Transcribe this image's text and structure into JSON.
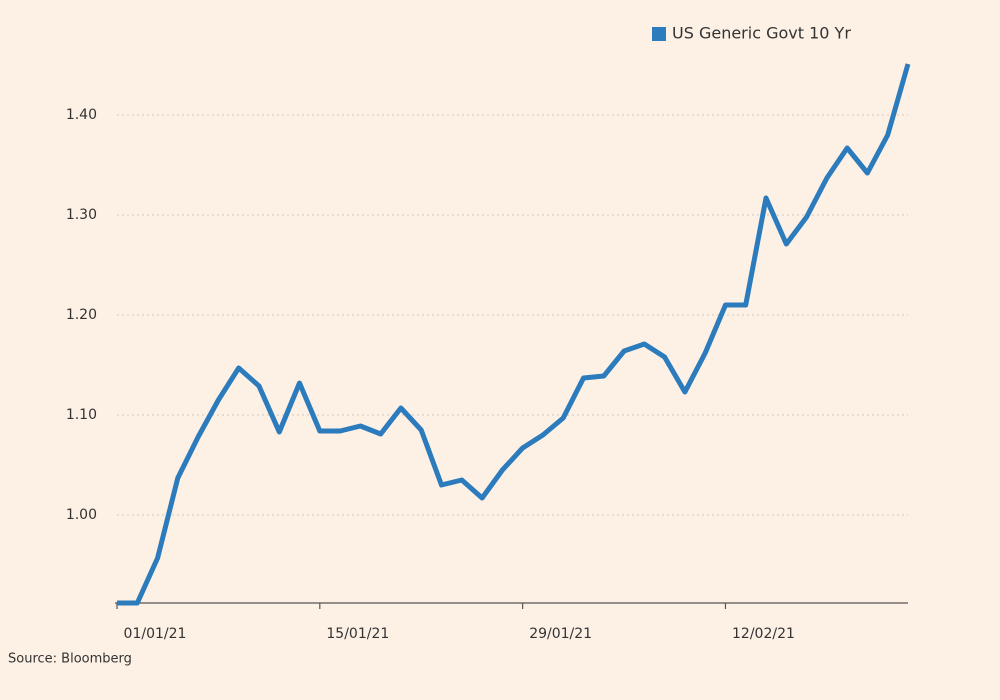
{
  "chart_data": {
    "type": "line",
    "categories": [
      "01/01/21",
      null,
      null,
      null,
      null,
      null,
      null,
      null,
      null,
      null,
      "15/01/21",
      null,
      null,
      null,
      null,
      null,
      null,
      null,
      null,
      null,
      "29/01/21",
      null,
      null,
      null,
      null,
      null,
      null,
      null,
      null,
      null,
      "12/02/21",
      null,
      null,
      null,
      null,
      null,
      null,
      null,
      null,
      null
    ],
    "series": [
      {
        "name": "US Generic Govt 10 Yr",
        "color": "#2b7bbd",
        "values": [
          0.912,
          0.912,
          0.957,
          1.037,
          1.078,
          1.115,
          1.147,
          1.129,
          1.083,
          1.132,
          1.084,
          1.084,
          1.089,
          1.081,
          1.107,
          1.085,
          1.03,
          1.035,
          1.017,
          1.045,
          1.067,
          1.08,
          1.097,
          1.137,
          1.139,
          1.164,
          1.171,
          1.158,
          1.123,
          1.162,
          1.21,
          1.21,
          1.317,
          1.271,
          1.298,
          1.337,
          1.367,
          1.342,
          1.38,
          1.451
        ]
      }
    ],
    "ylim": [
      0.912,
      1.455
    ],
    "yticks": [
      {
        "value": 1.0,
        "label": "1.00"
      },
      {
        "value": 1.1,
        "label": "1.10"
      },
      {
        "value": 1.2,
        "label": "1.20"
      },
      {
        "value": 1.3,
        "label": "1.30"
      },
      {
        "value": 1.4,
        "label": "1.40"
      }
    ],
    "grid": true,
    "legend": "top-right",
    "source": "Source: Bloomberg"
  }
}
